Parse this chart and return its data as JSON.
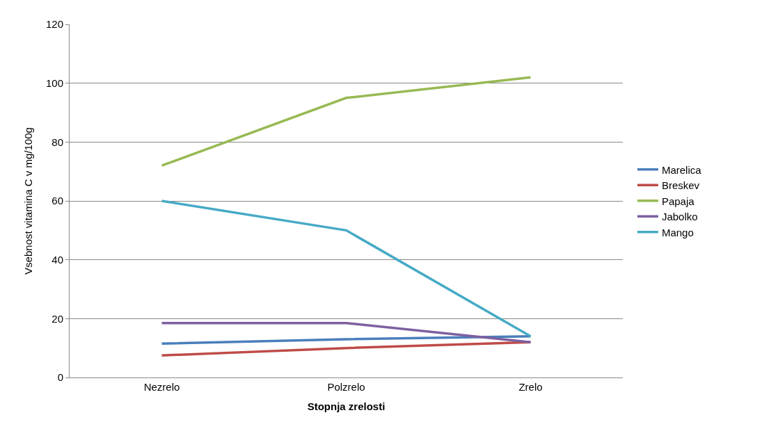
{
  "chart_data": {
    "type": "line",
    "xlabel": "Stopnja zrelosti",
    "ylabel": "Vsebnost vitamina C v mg/100g",
    "categories": [
      "Nezrelo",
      "Polzrelo",
      "Zrelo"
    ],
    "series": [
      {
        "name": "Marelica",
        "color": "#4a7ebb",
        "values": [
          11.5,
          13,
          14
        ]
      },
      {
        "name": "Breskev",
        "color": "#be4b48",
        "values": [
          7.5,
          10,
          12
        ]
      },
      {
        "name": "Papaja",
        "color": "#98b954",
        "values": [
          72,
          95,
          102
        ]
      },
      {
        "name": "Jabolko",
        "color": "#7d60a0",
        "values": [
          18.5,
          18.5,
          12
        ]
      },
      {
        "name": "Mango",
        "color": "#46aac5",
        "values": [
          60,
          50,
          14
        ]
      }
    ],
    "ylim": [
      0,
      120
    ],
    "yticks": [
      0,
      20,
      40,
      60,
      80,
      100,
      120
    ],
    "grid": "y",
    "legend": "right",
    "marker": "none",
    "line_style": "solid"
  }
}
